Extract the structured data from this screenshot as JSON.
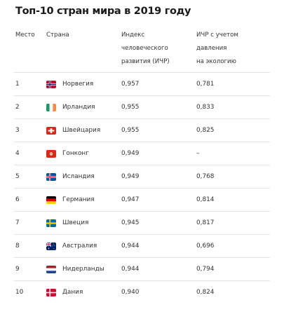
{
  "title": "Топ-10 стран мира в 2019 году",
  "headers": {
    "rank": "Место",
    "country": "Страна",
    "hdi_lines": [
      "Индекс",
      "человеческого",
      "развития (ИЧР)"
    ],
    "ihdi_lines": [
      "ИЧР с учетом",
      "давления",
      "на экологию"
    ]
  },
  "rows": [
    {
      "rank": "1",
      "country": "Норвегия",
      "hdi": "0,957",
      "ihdi": "0,781",
      "flag": "norway-flag-icon"
    },
    {
      "rank": "2",
      "country": "Ирландия",
      "hdi": "0,955",
      "ihdi": "0,833",
      "flag": "ireland-flag-icon"
    },
    {
      "rank": "3",
      "country": "Швейцария",
      "hdi": "0,955",
      "ihdi": "0,825",
      "flag": "switzerland-flag-icon"
    },
    {
      "rank": "4",
      "country": "Гонконг",
      "hdi": "0,949",
      "ihdi": "–",
      "flag": "hong-kong-flag-icon"
    },
    {
      "rank": "5",
      "country": "Исландия",
      "hdi": "0,949",
      "ihdi": "0,768",
      "flag": "iceland-flag-icon"
    },
    {
      "rank": "6",
      "country": "Германия",
      "hdi": "0,947",
      "ihdi": "0,814",
      "flag": "germany-flag-icon"
    },
    {
      "rank": "7",
      "country": "Швеция",
      "hdi": "0,945",
      "ihdi": "0,817",
      "flag": "sweden-flag-icon"
    },
    {
      "rank": "8",
      "country": "Австралия",
      "hdi": "0,944",
      "ihdi": "0,696",
      "flag": "australia-flag-icon"
    },
    {
      "rank": "9",
      "country": "Нидерланды",
      "hdi": "0,944",
      "ihdi": "0,794",
      "flag": "netherlands-flag-icon"
    },
    {
      "rank": "10",
      "country": "Дания",
      "hdi": "0,940",
      "ihdi": "0,824",
      "flag": "denmark-flag-icon"
    }
  ]
}
